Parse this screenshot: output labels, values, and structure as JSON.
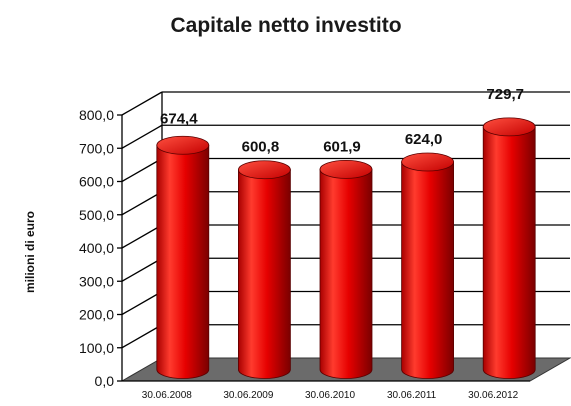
{
  "chart_data": {
    "type": "bar",
    "title": "Capitale netto investito",
    "ylabel": "milioni di euro",
    "xlabel": "",
    "categories": [
      "30.06.2008",
      "30.06.2009",
      "30.06.2010",
      "30.06.2011",
      "30.06.2012"
    ],
    "values": [
      674.4,
      600.8,
      601.9,
      624.0,
      729.7
    ],
    "value_labels": [
      "674,4",
      "600,8",
      "601,9",
      "624,0",
      "729,7"
    ],
    "ylim": [
      0,
      800
    ],
    "yticks": [
      "0,0",
      "100,0",
      "200,0",
      "300,0",
      "400,0",
      "500,0",
      "600,0",
      "700,0",
      "800,0"
    ],
    "grid": true,
    "legend": "none",
    "style": "3d-cylinder",
    "colors": {
      "bar": "#e60000",
      "bar_dark": "#8c0000",
      "bar_light": "#ff6b5e",
      "floor": "#6b6b6b",
      "grid": "#000000"
    }
  }
}
